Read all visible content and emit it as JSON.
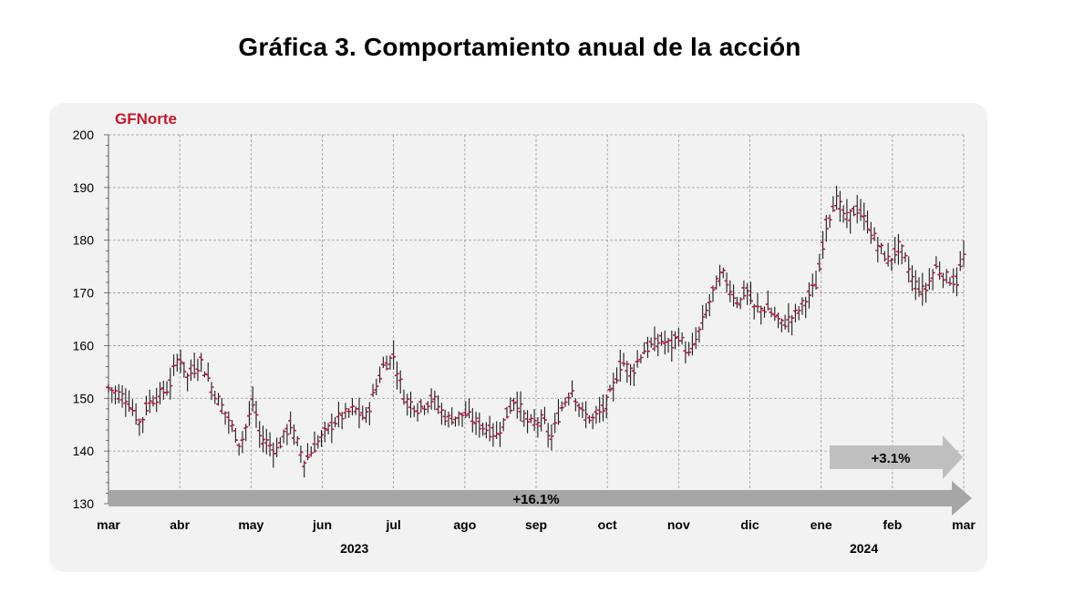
{
  "page": {
    "title": "Gráfica 3. Comportamiento anual de la acción"
  },
  "chart_data": {
    "type": "ohlc",
    "title": "GFNorte",
    "ylim": [
      130,
      200
    ],
    "yticks": [
      130,
      140,
      150,
      160,
      170,
      180,
      190,
      200
    ],
    "x_months": [
      "mar",
      "abr",
      "may",
      "jun",
      "jul",
      "ago",
      "sep",
      "oct",
      "nov",
      "dic",
      "ene",
      "feb",
      "mar"
    ],
    "years": [
      {
        "label": "2023"
      },
      {
        "label": "2024"
      }
    ],
    "grid": true,
    "anchors": [
      [
        0,
        152
      ],
      [
        0.25,
        150
      ],
      [
        0.45,
        145
      ],
      [
        0.55,
        149
      ],
      [
        0.85,
        152
      ],
      [
        0.95,
        157
      ],
      [
        1.0,
        158
      ],
      [
        1.1,
        154
      ],
      [
        1.3,
        157
      ],
      [
        1.45,
        152
      ],
      [
        1.65,
        147
      ],
      [
        1.85,
        141
      ],
      [
        2.05,
        150
      ],
      [
        2.1,
        143
      ],
      [
        2.2,
        142
      ],
      [
        2.35,
        140
      ],
      [
        2.55,
        145
      ],
      [
        2.75,
        138
      ],
      [
        2.95,
        142
      ],
      [
        3.2,
        146
      ],
      [
        3.45,
        148
      ],
      [
        3.6,
        146
      ],
      [
        3.75,
        152
      ],
      [
        3.85,
        156
      ],
      [
        4.0,
        158
      ],
      [
        4.15,
        150
      ],
      [
        4.35,
        148
      ],
      [
        4.55,
        150
      ],
      [
        4.75,
        146
      ],
      [
        5.0,
        147
      ],
      [
        5.2,
        145
      ],
      [
        5.45,
        143
      ],
      [
        5.7,
        150
      ],
      [
        5.9,
        145
      ],
      [
        6.1,
        146
      ],
      [
        6.2,
        142
      ],
      [
        6.35,
        148
      ],
      [
        6.5,
        152
      ],
      [
        6.65,
        147
      ],
      [
        6.8,
        146
      ],
      [
        6.95,
        148
      ],
      [
        7.05,
        151
      ],
      [
        7.2,
        157
      ],
      [
        7.35,
        155
      ],
      [
        7.5,
        159
      ],
      [
        7.75,
        161
      ],
      [
        7.9,
        160
      ],
      [
        8.0,
        162
      ],
      [
        8.15,
        158
      ],
      [
        8.3,
        163
      ],
      [
        8.45,
        169
      ],
      [
        8.6,
        174
      ],
      [
        8.75,
        170
      ],
      [
        8.85,
        168
      ],
      [
        8.95,
        171
      ],
      [
        9.05,
        167
      ],
      [
        9.25,
        167
      ],
      [
        9.45,
        164
      ],
      [
        9.65,
        166
      ],
      [
        9.8,
        169
      ],
      [
        9.95,
        172
      ],
      [
        10.05,
        182
      ],
      [
        10.2,
        188
      ],
      [
        10.35,
        184
      ],
      [
        10.5,
        186
      ],
      [
        10.65,
        183
      ],
      [
        10.8,
        179
      ],
      [
        10.95,
        176
      ],
      [
        11.1,
        179
      ],
      [
        11.3,
        172
      ],
      [
        11.45,
        170
      ],
      [
        11.6,
        175
      ],
      [
        11.75,
        173
      ],
      [
        11.9,
        172
      ],
      [
        12.0,
        177
      ]
    ],
    "annotations": [
      {
        "label": "+16.1%",
        "type": "arrow"
      },
      {
        "label": "+3.1%",
        "type": "arrow"
      }
    ],
    "colors": {
      "bar": "#1a1a1a",
      "tick": "#c0143c",
      "title": "#c0182c",
      "grid": "#999999",
      "arrow_long": "#a6a6a6",
      "arrow_short": "#bfbfbf",
      "panel": "#f2f2f2"
    }
  }
}
